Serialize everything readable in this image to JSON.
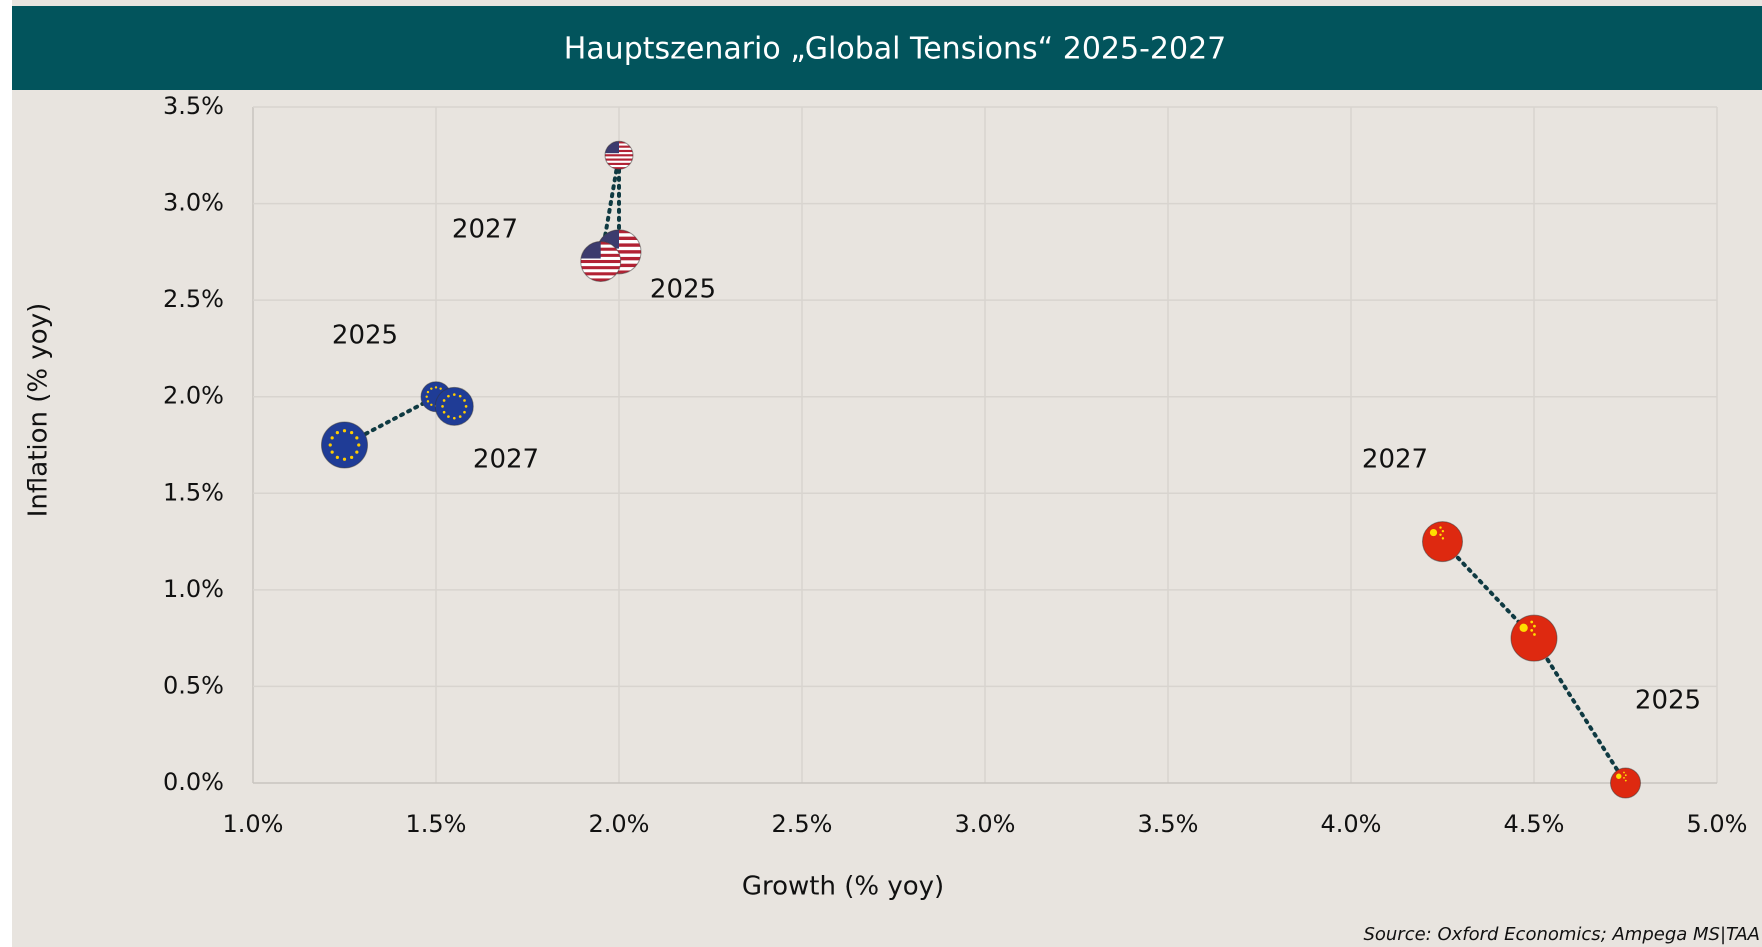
{
  "chart_data": {
    "type": "scatter",
    "title": "Hauptszenario „Global Tensions“ 2025-2027",
    "x_label": "Growth (% yoy)",
    "y_label": "Inflation (% yoy)",
    "source": "Source: Oxford Economics; Ampega MS|TAA",
    "series": [
      {
        "color": "#1f3c96",
        "x": [
          1.25,
          1.5,
          1.55
        ],
        "values": [
          1.75,
          2.0,
          1.95
        ]
      },
      {
        "color": "#b22234",
        "x": [
          2.0,
          2.0,
          1.95
        ],
        "values": [
          2.75,
          3.25,
          2.7
        ]
      },
      {
        "color": "#de2910",
        "x": [
          4.75,
          4.5,
          4.25
        ],
        "values": [
          0.0,
          0.75,
          1.25
        ]
      }
    ],
    "annotations": [
      "2027",
      "2025",
      "2025",
      "2027",
      "2027",
      "2025"
    ],
    "xlim": [
      1.0,
      5.0
    ],
    "xticks": [
      {
        "value": 1.0,
        "label": "1.0%"
      },
      {
        "value": 1.5,
        "label": "1.5%"
      },
      {
        "value": 2.0,
        "label": "2.0%"
      },
      {
        "value": 2.5,
        "label": "2.5%"
      },
      {
        "value": 3.0,
        "label": "3.0%"
      },
      {
        "value": 3.5,
        "label": "3.5%"
      },
      {
        "value": 4.0,
        "label": "4.0%"
      },
      {
        "value": 4.5,
        "label": "4.5%"
      },
      {
        "value": 5.0,
        "label": "5.0%"
      }
    ],
    "ylim": [
      0.0,
      3.5
    ],
    "yticks": [
      {
        "value": 0.0,
        "label": "0.0%"
      },
      {
        "value": 0.5,
        "label": "0.5%"
      },
      {
        "value": 1.0,
        "label": "1.0%"
      },
      {
        "value": 1.5,
        "label": "1.5%"
      },
      {
        "value": 2.0,
        "label": "2.0%"
      },
      {
        "value": 2.5,
        "label": "2.5%"
      },
      {
        "value": 3.0,
        "label": "3.0%"
      },
      {
        "value": 3.5,
        "label": "3.5%"
      }
    ],
    "grid": true
  }
}
